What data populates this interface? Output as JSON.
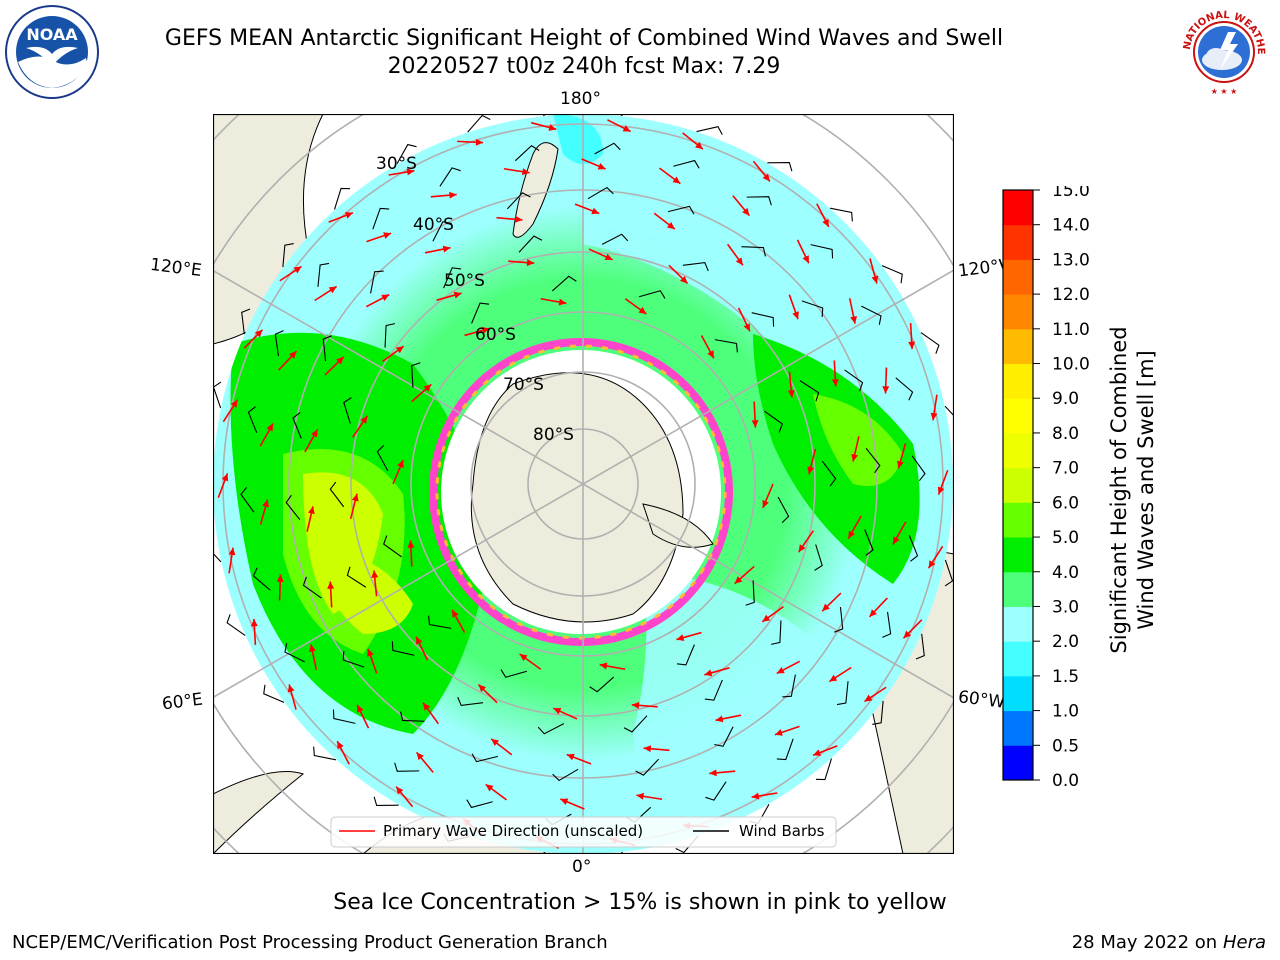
{
  "header": {
    "title_line1": "GEFS MEAN Antarctic Significant Height of Combined Wind Waves and Swell",
    "title_line2": "20220527 t00z 240h fcst   Max: 7.29"
  },
  "logos": {
    "left": {
      "icon": "noaa-logo",
      "text": "NOAA"
    },
    "right": {
      "icon": "nws-logo",
      "text": "NATIONAL WEATHER SERVICE"
    }
  },
  "map": {
    "projection": "south-polar-stereographic",
    "longitude_labels": {
      "top": "180°",
      "bottom": "0°",
      "left_upper": "120°E",
      "left_lower": "60°E",
      "right_upper": "120°W",
      "right_lower": "60°W"
    },
    "latitude_labels": [
      "30°S",
      "40°S",
      "50°S",
      "60°S",
      "70°S",
      "80°S"
    ],
    "legend": {
      "wave_direction": "Primary Wave Direction (unscaled)",
      "wind_barbs": "Wind Barbs",
      "wave_color": "#ff0000",
      "barb_color": "#000000"
    },
    "land_color": "#eeecdc",
    "ice_color": "#ffffff",
    "ice_edge_colors": [
      "#ff44cc",
      "#ffbb33"
    ]
  },
  "colorbar": {
    "label_line1": "Significant Height of Combined",
    "label_line2": "Wind Waves and Swell [m]",
    "ticks": [
      "0.0",
      "0.5",
      "1.0",
      "1.5",
      "2.0",
      "3.0",
      "4.0",
      "5.0",
      "6.0",
      "7.0",
      "8.0",
      "9.0",
      "10.0",
      "11.0",
      "12.0",
      "13.0",
      "14.0",
      "15.0"
    ],
    "colors": [
      "#0000ff",
      "#0077ff",
      "#00ddff",
      "#44ffff",
      "#9effff",
      "#4dff7a",
      "#00ee00",
      "#66ff00",
      "#ccff00",
      "#eeff00",
      "#ffff00",
      "#ffee00",
      "#ffbb00",
      "#ff8800",
      "#ff6600",
      "#ff3300",
      "#ff0000"
    ]
  },
  "footer": {
    "ice_note": "Sea Ice Concentration > 15% is shown in pink to yellow",
    "left": "NCEP/EMC/Verification Post Processing Product Generation Branch",
    "right_date": "28 May 2022 on",
    "right_host": "Hera"
  }
}
